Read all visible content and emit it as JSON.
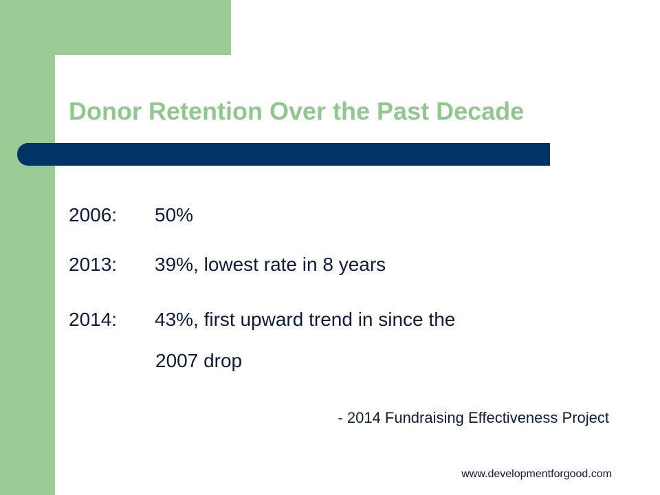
{
  "slide": {
    "title": "Donor Retention Over the Past Decade",
    "title_color": "#8fc78c",
    "stats": [
      {
        "year": "2006:",
        "text": "50%"
      },
      {
        "year": "2013:",
        "text": "39%, lowest rate in 8 years"
      },
      {
        "year": "2014:",
        "text": "43%, first upward trend in since the"
      }
    ],
    "stats_continuation": "2007 drop",
    "source": "- 2014 Fundraising Effectiveness Project",
    "website": "www.developmentforgood.com",
    "colors": {
      "accent_green": "#9ccc96",
      "divider_navy": "#003366",
      "body_text": "#0d1b3e"
    }
  }
}
